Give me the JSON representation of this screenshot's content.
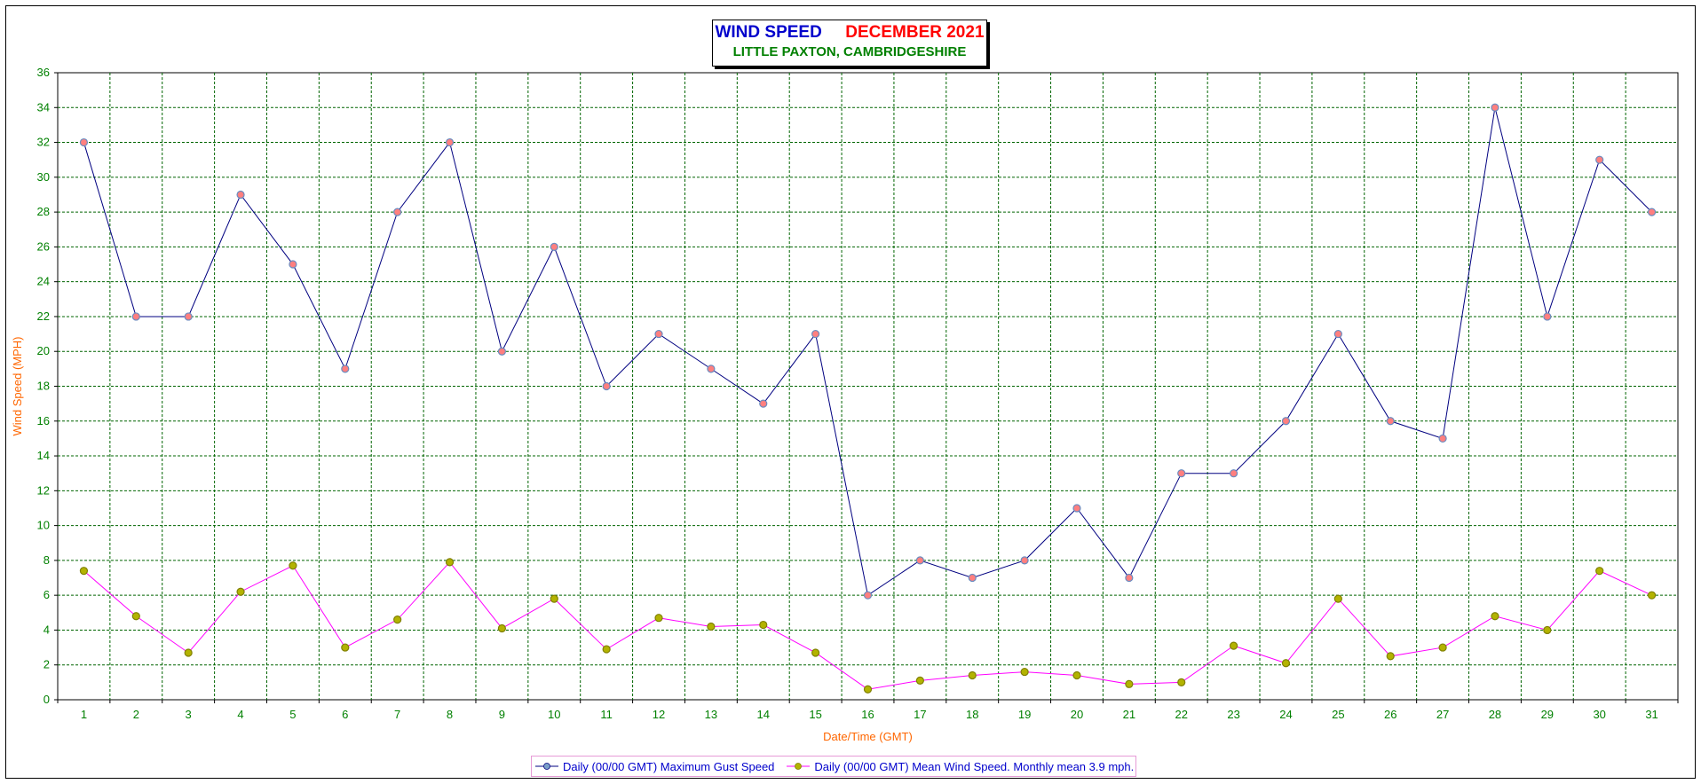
{
  "chart_data": {
    "type": "line",
    "title": "WIND SPEED",
    "title_month": "DECEMBER 2021",
    "subtitle": "LITTLE PAXTON, CAMBRIDGESHIRE",
    "xlabel": "Date/Time (GMT)",
    "ylabel": "Wind Speed (MPH)",
    "ylim": [
      0,
      36
    ],
    "ystep": 2,
    "grid": true,
    "legend_position": "bottom",
    "categories": [
      "1",
      "2",
      "3",
      "4",
      "5",
      "6",
      "7",
      "8",
      "9",
      "10",
      "11",
      "12",
      "13",
      "14",
      "15",
      "16",
      "17",
      "18",
      "19",
      "20",
      "21",
      "22",
      "23",
      "24",
      "25",
      "26",
      "27",
      "28",
      "29",
      "30",
      "31"
    ],
    "series": [
      {
        "name": "Daily (00/00 GMT) Maximum Gust Speed",
        "line_color": "#000080",
        "marker_color": "#ff7f7f",
        "values": [
          32,
          22,
          22,
          29,
          25,
          19,
          28,
          32,
          20,
          26,
          18,
          21,
          19,
          17,
          21,
          6,
          8,
          7,
          8,
          11,
          7,
          13,
          13,
          16,
          21,
          16,
          15,
          34,
          22,
          31,
          28
        ]
      },
      {
        "name": "Daily (00/00 GMT) Mean Wind Speed. Monthly mean 3.9 mph.",
        "line_color": "#ff00ff",
        "marker_color": "#b3b300",
        "values": [
          7.4,
          4.8,
          2.7,
          6.2,
          7.7,
          3.0,
          4.6,
          7.9,
          4.1,
          5.8,
          2.9,
          4.7,
          4.2,
          4.3,
          2.7,
          0.6,
          1.1,
          1.4,
          1.6,
          1.4,
          0.9,
          1.0,
          3.1,
          2.1,
          5.8,
          2.5,
          3.0,
          4.8,
          4.0,
          7.4,
          6.0
        ]
      }
    ]
  },
  "colors": {
    "title": "#0000cc",
    "title_month": "#ff0000",
    "subtitle": "#008000",
    "axis_title": "#ff6600",
    "tick_label": "#008000",
    "grid": "#006400",
    "legend_text": "#0000cc"
  }
}
